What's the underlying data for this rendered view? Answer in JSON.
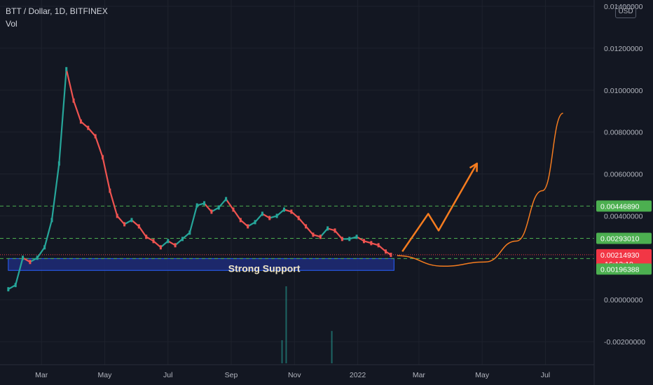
{
  "header": {
    "symbol_line": "BTT / Dollar, 1D, BITFINEX",
    "indicator": "Vol",
    "currency_button": "USD"
  },
  "colors": {
    "background": "#131722",
    "up": "#26a69a",
    "down": "#ef5350",
    "support_box": "#1e2b78",
    "support_border": "#2962ff",
    "resistance_line": "#4caf50",
    "current_price": "#f23645",
    "projection": "#f57c1f"
  },
  "chart_data": {
    "type": "line",
    "title": "BTT / Dollar, 1D, BITFINEX",
    "ylim": [
      -0.0031,
      0.0143
    ],
    "y_ticks": [
      "0.01400000",
      "0.01200000",
      "0.01000000",
      "0.00800000",
      "0.00600000",
      "0.00400000",
      "0.00000000",
      "-0.00200000"
    ],
    "y_tick_values": [
      0.014,
      0.012,
      0.01,
      0.008,
      0.006,
      0.004,
      0.0,
      -0.002
    ],
    "x_ticks": [
      "Mar",
      "May",
      "Jul",
      "Sep",
      "Nov",
      "2022",
      "Mar",
      "May",
      "Jul"
    ],
    "x_tick_days": [
      32,
      93,
      154,
      215,
      276,
      337,
      396,
      457,
      518
    ],
    "x_range_days": [
      -8,
      565
    ],
    "series": [
      {
        "x_days": [
          0,
          7,
          14,
          21,
          28,
          35,
          42,
          49,
          56,
          63,
          70,
          77,
          84,
          91,
          98,
          105,
          112,
          119,
          126,
          133,
          140,
          147,
          154,
          161,
          168,
          175,
          182,
          189,
          196,
          203,
          210,
          217,
          224,
          231,
          238,
          245,
          252,
          259,
          266,
          273,
          280,
          287,
          294,
          301,
          308,
          315,
          322,
          329,
          336,
          343,
          350,
          357,
          364,
          369
        ],
        "values": [
          0.0005,
          0.0007,
          0.002,
          0.0018,
          0.002,
          0.0025,
          0.0038,
          0.0065,
          0.011,
          0.0095,
          0.0085,
          0.0082,
          0.0078,
          0.0068,
          0.0052,
          0.004,
          0.0036,
          0.0038,
          0.0035,
          0.003,
          0.0028,
          0.0025,
          0.0028,
          0.0026,
          0.0029,
          0.0032,
          0.0045,
          0.0046,
          0.0042,
          0.0044,
          0.0048,
          0.0043,
          0.0038,
          0.0035,
          0.0037,
          0.0041,
          0.0039,
          0.004,
          0.0043,
          0.0042,
          0.0039,
          0.0035,
          0.0031,
          0.003,
          0.0034,
          0.0033,
          0.0029,
          0.0029,
          0.003,
          0.0028,
          0.0027,
          0.0026,
          0.0023,
          0.00214
        ]
      }
    ],
    "volume_spikes": [
      {
        "x_day": 268,
        "value": 1.0
      },
      {
        "x_day": 264,
        "value": 0.3
      },
      {
        "x_day": 312,
        "value": 0.42
      }
    ],
    "horizontal_levels": [
      0.0044689,
      0.0029301,
      0.0019638
    ],
    "current_price": 0.0021493,
    "price_labels": [
      "0.00446890",
      "0.00293010",
      "0.00214930",
      "16:12:10",
      "0.00196388"
    ],
    "support_zone": {
      "x_start_days": 0,
      "x_end_days": 372,
      "y_low": 0.0014,
      "y_high": 0.0019638
    },
    "annotations": [
      "Strong Support"
    ],
    "projection_zigzag": {
      "x_days": [
        380,
        405,
        415,
        452
      ],
      "values": [
        0.0023,
        0.0041,
        0.0033,
        0.0065
      ]
    },
    "projection_curve": {
      "x_days": [
        375,
        420,
        460,
        490,
        515,
        535
      ],
      "values": [
        0.0021,
        0.0016,
        0.0018,
        0.0028,
        0.0052,
        0.0089
      ]
    }
  }
}
